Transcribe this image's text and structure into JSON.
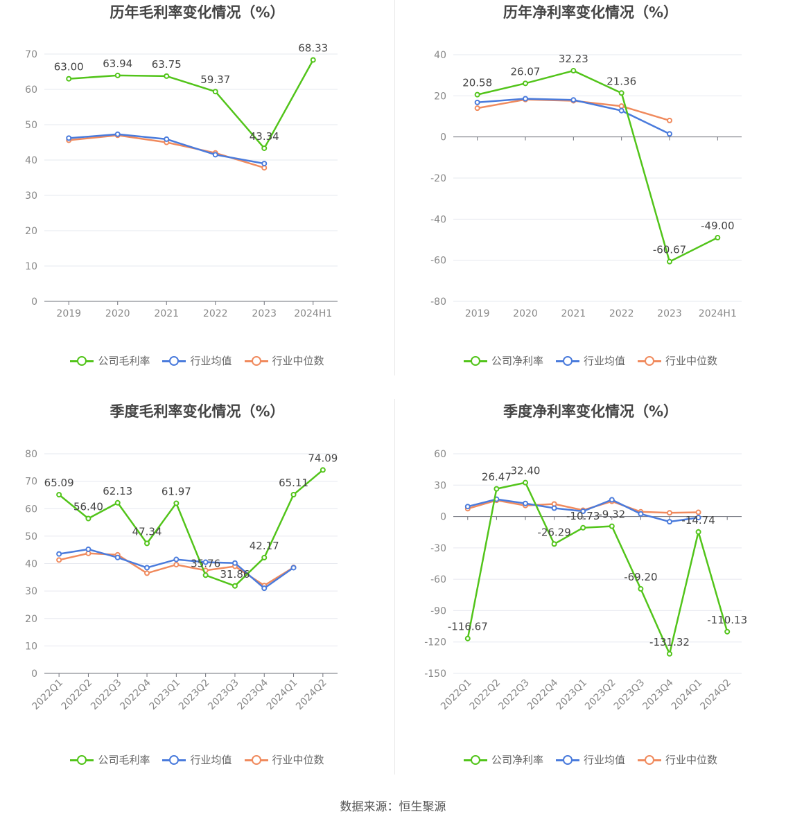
{
  "source": "数据来源：恒生聚源",
  "colors": {
    "company": "#52c41a",
    "avg": "#4a7bdc",
    "median": "#f08a5d"
  },
  "legend_shared": {
    "avg": "行业均值",
    "median": "行业中位数"
  },
  "chart_data": [
    {
      "type": "line",
      "title": "历年毛利率变化情况（%）",
      "legend": [
        "公司毛利率",
        "行业均值",
        "行业中位数"
      ],
      "categories": [
        "2019",
        "2020",
        "2021",
        "2022",
        "2023",
        "2024H1"
      ],
      "ylim": [
        0,
        70
      ],
      "yticks": [
        0,
        10,
        20,
        30,
        40,
        50,
        60,
        70
      ],
      "series": [
        {
          "name": "公司毛利率",
          "values": [
            63.0,
            63.94,
            63.75,
            59.37,
            43.34,
            68.33
          ],
          "labels": [
            "63.00",
            "63.94",
            "63.75",
            "59.37",
            "43.34",
            "68.33"
          ]
        },
        {
          "name": "行业均值",
          "values": [
            46.2,
            47.3,
            45.9,
            41.5,
            39.0,
            null
          ]
        },
        {
          "name": "行业中位数",
          "values": [
            45.6,
            47.0,
            45.0,
            42.0,
            37.8,
            null
          ]
        }
      ]
    },
    {
      "type": "line",
      "title": "历年净利率变化情况（%）",
      "legend": [
        "公司净利率",
        "行业均值",
        "行业中位数"
      ],
      "categories": [
        "2019",
        "2020",
        "2021",
        "2022",
        "2023",
        "2024H1"
      ],
      "ylim": [
        -80,
        40
      ],
      "yticks": [
        -80,
        -60,
        -40,
        -20,
        0,
        20,
        40
      ],
      "series": [
        {
          "name": "公司净利率",
          "values": [
            20.58,
            26.07,
            32.23,
            21.36,
            -60.67,
            -49.0
          ],
          "labels": [
            "20.58",
            "26.07",
            "32.23",
            "21.36",
            "-60.67",
            "-49.00"
          ]
        },
        {
          "name": "行业均值",
          "values": [
            16.8,
            18.6,
            18.0,
            12.8,
            1.5,
            null
          ]
        },
        {
          "name": "行业中位数",
          "values": [
            14.0,
            18.2,
            17.6,
            15.0,
            8.0,
            null
          ]
        }
      ]
    },
    {
      "type": "line",
      "title": "季度毛利率变化情况（%）",
      "legend": [
        "公司毛利率",
        "行业均值",
        "行业中位数"
      ],
      "categories": [
        "2022Q1",
        "2022Q2",
        "2022Q3",
        "2022Q4",
        "2023Q1",
        "2023Q2",
        "2023Q3",
        "2023Q4",
        "2024Q1",
        "2024Q2"
      ],
      "ylim": [
        0,
        80
      ],
      "yticks": [
        0,
        10,
        20,
        30,
        40,
        50,
        60,
        70,
        80
      ],
      "series": [
        {
          "name": "公司毛利率",
          "values": [
            65.09,
            56.4,
            62.13,
            47.34,
            61.97,
            35.76,
            31.86,
            42.17,
            65.11,
            74.09
          ],
          "labels": [
            "65.09",
            "56.40",
            "62.13",
            "47.34",
            "61.97",
            "35.76",
            "31.86",
            "42.17",
            "65.11",
            "74.09"
          ]
        },
        {
          "name": "行业均值",
          "values": [
            43.5,
            45.2,
            42.2,
            38.5,
            41.5,
            40.5,
            40.2,
            31.0,
            38.5,
            null
          ]
        },
        {
          "name": "行业中位数",
          "values": [
            41.3,
            43.7,
            43.2,
            36.5,
            39.6,
            37.5,
            39.0,
            32.0,
            38.6,
            null
          ]
        }
      ]
    },
    {
      "type": "line",
      "title": "季度净利率变化情况（%）",
      "legend": [
        "公司净利率",
        "行业均值",
        "行业中位数"
      ],
      "categories": [
        "2022Q1",
        "2022Q2",
        "2022Q3",
        "2022Q4",
        "2023Q1",
        "2023Q2",
        "2023Q3",
        "2023Q4",
        "2024Q1",
        "2024Q2"
      ],
      "ylim": [
        -150,
        60
      ],
      "yticks": [
        -150,
        -120,
        -90,
        -60,
        -30,
        0,
        30,
        60
      ],
      "series": [
        {
          "name": "公司净利率",
          "values": [
            -116.67,
            26.47,
            32.4,
            -26.29,
            -10.73,
            -9.32,
            -69.2,
            -131.32,
            -14.74,
            -110.13
          ],
          "labels": [
            "-116.67",
            "26.47",
            "32.40",
            "-26.29",
            "-10.73",
            "-9.32",
            "-69.20",
            "-131.32",
            "-14.74",
            "-110.13"
          ]
        },
        {
          "name": "行业均值",
          "values": [
            9.5,
            16.5,
            12.5,
            8.0,
            5.0,
            16.0,
            2.5,
            -5.0,
            -1.0,
            null
          ]
        },
        {
          "name": "行业中位数",
          "values": [
            7.5,
            15.5,
            10.5,
            12.0,
            6.0,
            14.5,
            4.5,
            3.5,
            4.0,
            null
          ]
        }
      ]
    }
  ]
}
